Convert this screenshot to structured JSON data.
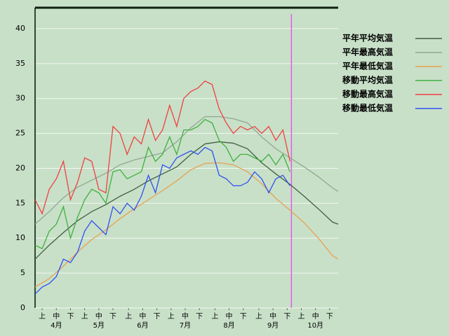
{
  "chart_data": {
    "type": "line",
    "xlim": [
      0,
      214
    ],
    "ylim": [
      0,
      43
    ],
    "yticks": [
      0,
      5,
      10,
      15,
      20,
      25,
      30,
      35,
      40
    ],
    "xticks": [
      {
        "value": 5,
        "label": "上"
      },
      {
        "value": 15,
        "label": "中"
      },
      {
        "value": 25,
        "label": "下"
      },
      {
        "value": 35,
        "label": "上"
      },
      {
        "value": 45,
        "label": "中"
      },
      {
        "value": 55,
        "label": "下"
      },
      {
        "value": 66,
        "label": "上"
      },
      {
        "value": 76,
        "label": "中"
      },
      {
        "value": 86,
        "label": "下"
      },
      {
        "value": 96,
        "label": "上"
      },
      {
        "value": 106,
        "label": "中"
      },
      {
        "value": 116,
        "label": "下"
      },
      {
        "value": 127,
        "label": "上"
      },
      {
        "value": 137,
        "label": "中"
      },
      {
        "value": 147,
        "label": "下"
      },
      {
        "value": 158,
        "label": "上"
      },
      {
        "value": 168,
        "label": "中"
      },
      {
        "value": 178,
        "label": "下"
      },
      {
        "value": 188,
        "label": "上"
      },
      {
        "value": 198,
        "label": "中"
      },
      {
        "value": 208,
        "label": "下"
      }
    ],
    "month_labels": [
      {
        "value": 15,
        "label": "4月"
      },
      {
        "value": 45,
        "label": "5月"
      },
      {
        "value": 76,
        "label": "6月"
      },
      {
        "value": 106,
        "label": "7月"
      },
      {
        "value": 137,
        "label": "8月"
      },
      {
        "value": 168,
        "label": "9月"
      },
      {
        "value": 198,
        "label": "10月"
      }
    ],
    "grid": true,
    "marker_x": 181,
    "marker_color": "#e060e0",
    "series": [
      {
        "name": "平年平均気温",
        "color": "#406040",
        "x": [
          0,
          10,
          20,
          30,
          40,
          50,
          60,
          70,
          80,
          90,
          100,
          110,
          120,
          130,
          140,
          150,
          160,
          170,
          180,
          190,
          200,
          210,
          214
        ],
        "values": [
          7,
          9,
          10.8,
          12.5,
          13.8,
          14.8,
          16,
          17,
          18.2,
          19.2,
          20.2,
          22,
          23.5,
          23.8,
          23.6,
          22.8,
          20.8,
          19.2,
          17.7,
          16,
          14.2,
          12.3,
          12
        ]
      },
      {
        "name": "平年最高気温",
        "color": "#90a890",
        "x": [
          0,
          10,
          20,
          30,
          40,
          50,
          60,
          70,
          80,
          90,
          100,
          110,
          120,
          130,
          140,
          150,
          160,
          170,
          180,
          190,
          200,
          210,
          214
        ],
        "values": [
          12,
          13.8,
          15.8,
          17.3,
          18.3,
          19.3,
          20.5,
          21.2,
          21.7,
          22.2,
          23.8,
          25.8,
          27.4,
          27.4,
          27.1,
          26.5,
          24.5,
          22.8,
          21.5,
          20.2,
          18.8,
          17.2,
          16.7
        ]
      },
      {
        "name": "平年最低気温",
        "color": "#e8a050",
        "x": [
          0,
          10,
          20,
          30,
          40,
          50,
          60,
          70,
          80,
          90,
          100,
          110,
          120,
          130,
          140,
          150,
          160,
          170,
          180,
          190,
          200,
          210,
          214
        ],
        "values": [
          3,
          4.2,
          6,
          8,
          9.8,
          11.2,
          12.8,
          14.2,
          15.5,
          16.8,
          18.2,
          19.8,
          20.7,
          20.8,
          20.5,
          19.5,
          17.8,
          15.7,
          14,
          12.2,
          10,
          7.5,
          7
        ]
      },
      {
        "name": "移動平均気温",
        "color": "#40b040",
        "x": [
          0,
          5,
          10,
          15,
          20,
          25,
          30,
          35,
          40,
          45,
          50,
          55,
          60,
          65,
          70,
          75,
          80,
          85,
          90,
          95,
          100,
          105,
          110,
          115,
          120,
          125,
          130,
          135,
          140,
          145,
          150,
          155,
          160,
          165,
          170,
          175,
          180
        ],
        "values": [
          9,
          8.5,
          11,
          12,
          14.5,
          10,
          13,
          15.5,
          17,
          16.5,
          15,
          19.5,
          19.8,
          18.5,
          19,
          19.5,
          23,
          21,
          22,
          24.5,
          22,
          25.5,
          25.5,
          26,
          27,
          26.5,
          24,
          23,
          21,
          22,
          22,
          21.5,
          21,
          22,
          20.5,
          22,
          19.5
        ]
      },
      {
        "name": "移動最高気温",
        "color": "#f04040",
        "x": [
          0,
          5,
          10,
          15,
          20,
          25,
          30,
          35,
          40,
          45,
          50,
          55,
          60,
          65,
          70,
          75,
          80,
          85,
          90,
          95,
          100,
          105,
          110,
          115,
          120,
          125,
          130,
          135,
          140,
          145,
          150,
          155,
          160,
          165,
          170,
          175,
          180
        ],
        "values": [
          15.5,
          13.5,
          17,
          18.5,
          21,
          15.5,
          18,
          21.5,
          21,
          17,
          16.5,
          26,
          25,
          22,
          24.5,
          23.5,
          27,
          24,
          25.5,
          29,
          26,
          30,
          31,
          31.5,
          32.5,
          32,
          28.5,
          26.5,
          25,
          26,
          25.5,
          26,
          25,
          26,
          24,
          25.5,
          21
        ]
      },
      {
        "name": "移動最低気温",
        "color": "#3050f0",
        "x": [
          0,
          5,
          10,
          15,
          20,
          25,
          30,
          35,
          40,
          45,
          50,
          55,
          60,
          65,
          70,
          75,
          80,
          85,
          90,
          95,
          100,
          105,
          110,
          115,
          120,
          125,
          130,
          135,
          140,
          145,
          150,
          155,
          160,
          165,
          170,
          175,
          180
        ],
        "values": [
          2,
          3,
          3.5,
          4.5,
          7,
          6.5,
          8,
          11,
          12.5,
          11.5,
          10.5,
          14.5,
          13.5,
          15,
          14,
          16,
          19,
          16.5,
          20.5,
          20,
          21.5,
          22,
          22.5,
          22,
          23,
          22.5,
          19,
          18.5,
          17.5,
          17.5,
          18,
          19.5,
          18.5,
          16.5,
          18.5,
          19,
          17.5
        ]
      }
    ]
  }
}
